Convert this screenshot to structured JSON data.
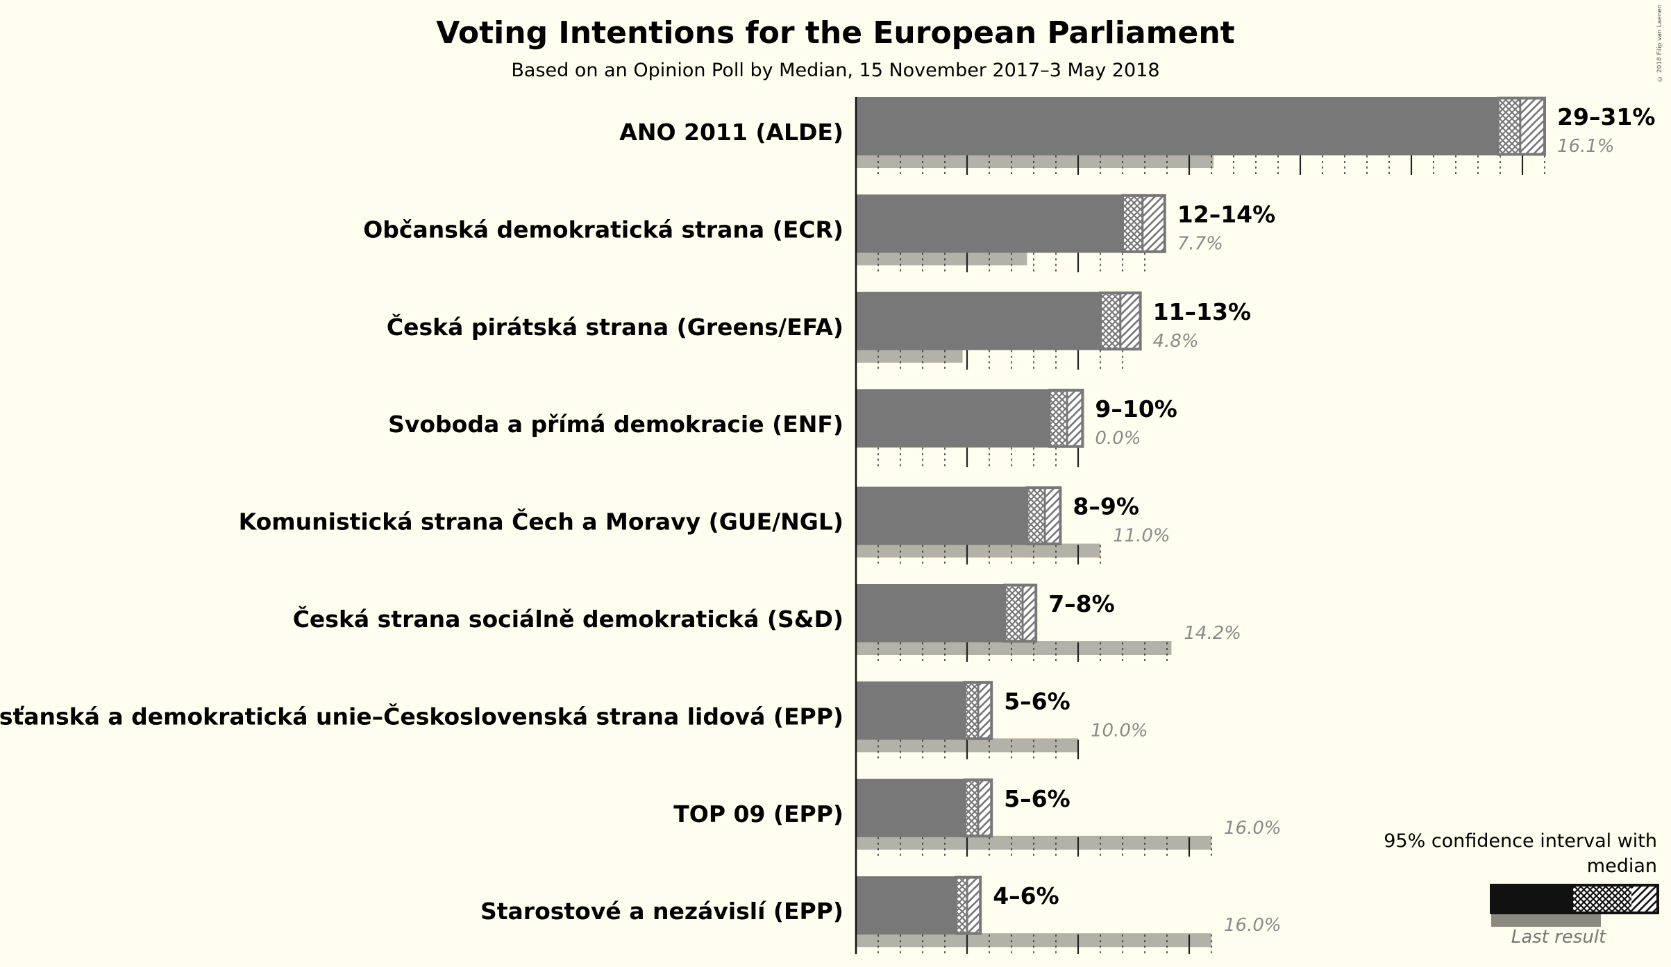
{
  "title": "Voting Intentions for the European Parliament",
  "subtitle": "Based on an Opinion Poll by Median, 15 November 2017–3 May 2018",
  "copyright": "© 2018 Filip van Laenen",
  "legend": {
    "title": "95% confidence interval with median",
    "last_result": "Last result"
  },
  "colors": {
    "background": "#FFFEEF",
    "bar": "#787878",
    "last_result": "#B3B2A9",
    "legend_solid": "#111111"
  },
  "chart_data": {
    "type": "bar",
    "orientation": "horizontal",
    "title": "Voting Intentions for the European Parliament",
    "subtitle": "Based on an Opinion Poll by Median, 15 November 2017–3 May 2018",
    "xlim": [
      0,
      31
    ],
    "grid": true,
    "categories": [
      "ANO 2011 (ALDE)",
      "Občanská demokratická strana (ECR)",
      "Česká pirátská strana (Greens/EFA)",
      "Svoboda a přímá demokracie (ENF)",
      "Komunistická strana Čech a Moravy (GUE/NGL)",
      "Česká strana sociálně demokratická (S&D)",
      "Křesťanská a demokratická unie–Československá strana lidová (EPP)",
      "TOP 09 (EPP)",
      "Starostové a nezávislí (EPP)"
    ],
    "series": [
      {
        "name": "95% confidence interval with median",
        "low": [
          28.9,
          12.0,
          11.0,
          8.7,
          7.7,
          6.7,
          4.9,
          4.9,
          4.5
        ],
        "median": [
          29.9,
          12.9,
          11.9,
          9.5,
          8.5,
          7.5,
          5.5,
          5.5,
          5.0
        ],
        "high": [
          31.0,
          13.9,
          12.8,
          10.2,
          9.2,
          8.1,
          6.1,
          6.1,
          5.6
        ],
        "labels": [
          "29–31%",
          "12–14%",
          "11–13%",
          "9–10%",
          "8–9%",
          "7–8%",
          "5–6%",
          "5–6%",
          "4–6%"
        ]
      },
      {
        "name": "Last result",
        "values": [
          16.1,
          7.7,
          4.8,
          0.0,
          11.0,
          14.2,
          10.0,
          16.0,
          16.0
        ],
        "labels": [
          "16.1%",
          "7.7%",
          "4.8%",
          "0.0%",
          "11.0%",
          "14.2%",
          "10.0%",
          "16.0%",
          "16.0%"
        ]
      }
    ]
  }
}
